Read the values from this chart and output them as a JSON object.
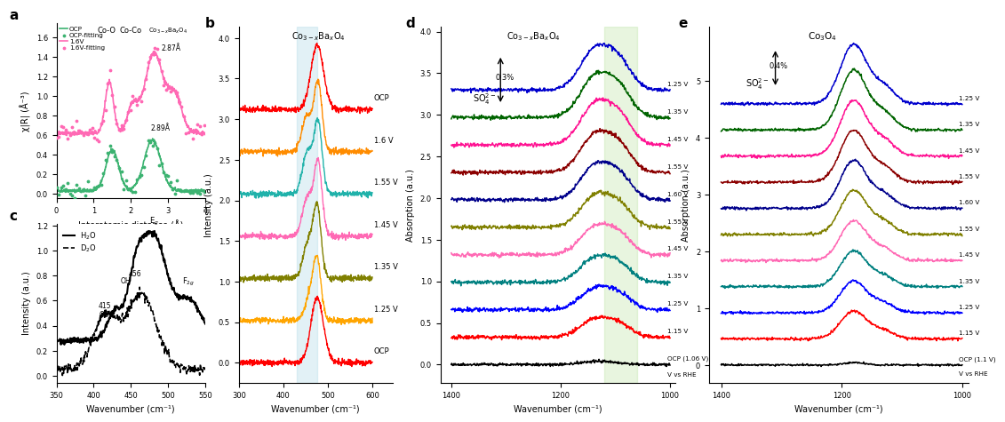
{
  "panel_a": {
    "title": "a",
    "xlabel": "Interatomic distance (Å)",
    "ylabel": "χ|R| (Å⁻³)",
    "xlim": [
      0,
      4
    ],
    "ocp_color": "#3CB371",
    "v16_color": "#FF69B4",
    "legend_items": [
      "OCP",
      "OCP-fitting",
      "1.6V",
      "1.6V-fitting"
    ]
  },
  "panel_b": {
    "title": "b",
    "xlabel": "Wavenumber (cm⁻¹)",
    "ylabel": "Intensity (a.u.)",
    "xlim": [
      300,
      600
    ],
    "highlight_color": "#ADD8E6",
    "voltage_labels": [
      "OCP",
      "1.6 V",
      "1.55 V",
      "1.45 V",
      "1.35 V",
      "1.25 V",
      "OCP"
    ],
    "voltage_colors": [
      "#FF0000",
      "#FF8C00",
      "#20B2AA",
      "#FF69B4",
      "#808000",
      "#FFA500",
      "#FF0000"
    ]
  },
  "panel_c": {
    "title": "c",
    "xlabel": "Wavenumber (cm⁻¹)",
    "ylabel": "Intensity (a.u.)",
    "xlim": [
      350,
      550
    ]
  },
  "panel_d": {
    "title": "d",
    "xlabel": "Wavenumber (cm⁻¹)",
    "ylabel": "Absorption (a.u.)",
    "xlim": [
      1400,
      1000
    ],
    "highlight_color": "#ADDE8E",
    "arrow_text": "0.3%",
    "voltage_labels": [
      "1.25 V",
      "1.35 V",
      "1.45 V",
      "1.55 V",
      "1.60 V",
      "1.55 V",
      "1.45 V",
      "1.35 V",
      "1.25 V",
      "1.15 V",
      "OCP (1.06 V)"
    ],
    "voltage_colors": [
      "#0000CD",
      "#006400",
      "#FF1493",
      "#8B0000",
      "#00008B",
      "#808000",
      "#FF69B4",
      "#008080",
      "#0000FF",
      "#FF0000",
      "#000000"
    ]
  },
  "panel_e": {
    "title": "e",
    "xlabel": "Wavenumber (cm⁻¹)",
    "ylabel": "Absorption (a.u.)",
    "xlim": [
      1400,
      1000
    ],
    "arrow_text": "0.4%",
    "voltage_labels": [
      "1.25 V",
      "1.35 V",
      "1.45 V",
      "1.55 V",
      "1.60 V",
      "1.55 V",
      "1.45 V",
      "1.35 V",
      "1.25 V",
      "1.15 V",
      "OCP (1.1 V)"
    ],
    "voltage_colors": [
      "#0000CD",
      "#006400",
      "#FF1493",
      "#8B0000",
      "#00008B",
      "#808000",
      "#FF69B4",
      "#008080",
      "#0000FF",
      "#FF0000",
      "#000000"
    ]
  },
  "background_color": "#FFFFFF"
}
